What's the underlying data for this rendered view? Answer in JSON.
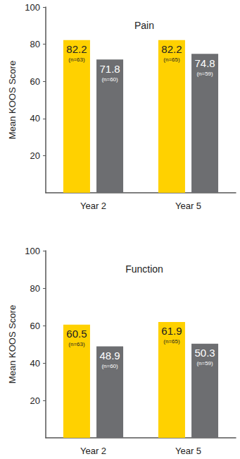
{
  "chart_data": [
    {
      "type": "bar",
      "title": "Pain",
      "y_label": "Mean KOOS Score",
      "categories": [
        "Year 2",
        "Year 5"
      ],
      "series": [
        {
          "color": "#FFD100",
          "values": [
            82.2,
            82.2
          ],
          "sample_labels": [
            "(n=63)",
            "(n=65)"
          ]
        },
        {
          "color": "#6D6E71",
          "values": [
            71.8,
            74.8
          ],
          "sample_labels": [
            "(n=60)",
            "(n=59)"
          ]
        }
      ],
      "ylim": [
        0,
        100
      ],
      "yticks": [
        20,
        40,
        60,
        80,
        100
      ],
      "grid": false,
      "data_labels": true
    },
    {
      "type": "bar",
      "title": "Function",
      "y_label": "Mean KOOS Score",
      "categories": [
        "Year 2",
        "Year 5"
      ],
      "series": [
        {
          "color": "#FFD100",
          "values": [
            60.5,
            61.9
          ],
          "sample_labels": [
            "(n=63)",
            "(n=65)"
          ]
        },
        {
          "color": "#6D6E71",
          "values": [
            48.9,
            50.3
          ],
          "sample_labels": [
            "(n=60)",
            "(n=59)"
          ]
        }
      ],
      "ylim": [
        0,
        100
      ],
      "yticks": [
        20,
        40,
        60,
        80,
        100
      ],
      "grid": false,
      "data_labels": true
    }
  ]
}
